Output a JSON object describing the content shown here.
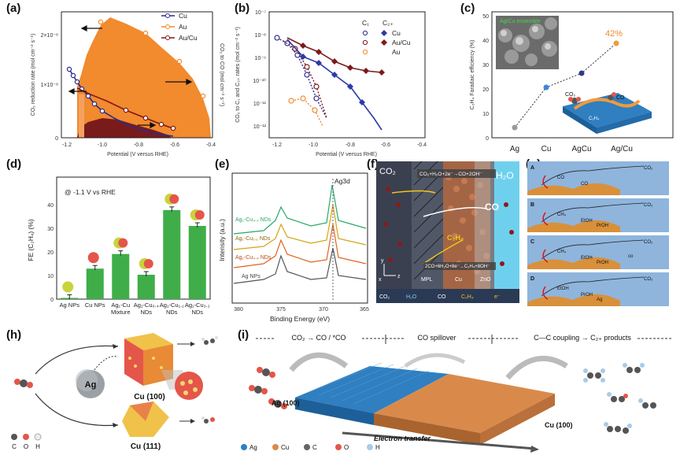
{
  "labels": {
    "a": "(a)",
    "b": "(b)",
    "c": "(c)",
    "d": "(d)",
    "e": "(e)",
    "f": "(f)",
    "g": "(g)",
    "h": "(h)",
    "i": "(i)"
  },
  "panel_a": {
    "ylabel_left": "CO₂ reduction rate (mol cm⁻² s⁻¹)",
    "ylabel_right": "CO₂ to CO (mol cm⁻² s⁻¹)",
    "xlabel": "Potential (V versus RHE)",
    "yticks": [
      "0",
      "1×10⁻⁸",
      "2×10⁻⁸"
    ],
    "xticks": [
      "-1.2",
      "-1.0",
      "-0.8",
      "-0.6",
      "-0.4"
    ],
    "legend": [
      "Cu",
      "Au",
      "Au/Cu"
    ],
    "colors": {
      "Cu": "#2b2a8f",
      "Au": "#f28a2e",
      "AuCu": "#7a1b1b"
    }
  },
  "panel_b": {
    "ylabel": "CO₂ to C₁ and C₂₊ rates (mol cm⁻² s⁻¹)",
    "xlabel": "Potential (V versus RHE)",
    "yticks": [
      "10⁻⁷",
      "10⁻⁸",
      "10⁻⁹",
      "10⁻¹⁰",
      "10⁻¹¹",
      "10⁻¹²"
    ],
    "xticks": [
      "-1.2",
      "-1.0",
      "-0.8",
      "-0.6",
      "-0.4"
    ],
    "legend_head": [
      "C₁",
      "C₂₊"
    ],
    "legend": [
      "Cu",
      "Au/Cu",
      "Au"
    ]
  },
  "panel_c": {
    "ylabel": "C₂H₄ Faradaic efficiency (%)",
    "yticks": [
      "0",
      "10",
      "20",
      "30",
      "40",
      "50"
    ],
    "categories": [
      "Ag",
      "Cu",
      "AgCu",
      "Ag/Cu"
    ],
    "values": [
      0,
      20,
      27,
      42
    ],
    "highlight": "42%",
    "inset_label": "Ag/Cu ensemble",
    "co2": "CO₂",
    "co": "CO",
    "c2h4": "C₂H₄",
    "colors": [
      "#999999",
      "#3f86d6",
      "#2e3a8c",
      "#f29a3a"
    ]
  },
  "panel_d": {
    "title": "@ -1.1 V vs RHE",
    "ylabel": "FE (C₂H₄) (%)",
    "yticks": [
      "0",
      "10",
      "20",
      "30",
      "40"
    ],
    "categories": [
      "Ag NPs",
      "Cu NPs",
      "Ag₁-Cu Mixture",
      "Ag₁-Cu₀.₄ NDs",
      "Ag₁-Cu₁.₁ NDs",
      "Ag₁-Cu₃.₂ NDs"
    ],
    "values": [
      0.5,
      12.5,
      18.5,
      10,
      36.5,
      30
    ]
  },
  "panel_e": {
    "peak": "Ag3d",
    "ylabel": "Intensity (a.u.)",
    "xlabel": "Binding Energy (eV)",
    "xticks": [
      "380",
      "375",
      "370",
      "365"
    ],
    "traces": [
      "Ag₁-Cu₃.₂ NDs",
      "Ag₁-Cu₁.₁ NDs",
      "Ag₁-Cu₀.₄ NDs",
      "Ag NPs"
    ],
    "trace_colors": [
      "#2aa86a",
      "#d4a317",
      "#e0651e",
      "#555555"
    ]
  },
  "panel_f": {
    "co2": "CO₂",
    "top_eq": "CO₂+H₂O+2e⁻→CO+2OH⁻",
    "h2o": "H₂O",
    "co": "CO",
    "c2h4": "C₂H₄",
    "bottom_eq": "2CO+6H₂O+8e⁻→C₂H₄+8OH⁻",
    "mpl": "MPL",
    "cu": "Cu",
    "zno": "ZnO",
    "axes": [
      "y",
      "x",
      "z"
    ],
    "legend": [
      "CO₂",
      "H₂O",
      "CO",
      "C₂H₄",
      "e⁻"
    ]
  },
  "panel_g": {
    "rows": [
      {
        "tag": "A",
        "items": [
          "CO₂",
          "CO",
          "CO"
        ]
      },
      {
        "tag": "B",
        "items": [
          "CO₂",
          "CH₄",
          "EtOH",
          "PrOH"
        ]
      },
      {
        "tag": "C",
        "items": [
          "CO₂",
          "CH₄",
          "EtOH",
          "PrOH",
          "co"
        ]
      },
      {
        "tag": "D",
        "items": [
          "CO₂",
          "EtOH",
          "PrOH",
          "Ag"
        ]
      }
    ]
  },
  "panel_h": {
    "ag": "Ag",
    "cu100": "Cu (100)",
    "cu111": "Cu (111)",
    "legend": [
      "C",
      "O",
      "H"
    ]
  },
  "panel_i": {
    "stage1": "CO₂ → CO / *CO",
    "stage2": "CO spillover",
    "stage3": "C—C coupling → C₂₊ products",
    "ag100": "Ag (100)",
    "cu100": "Cu (100)",
    "electron": "Electron transfer",
    "legend": [
      "Ag",
      "Cu",
      "C",
      "O",
      "H"
    ],
    "legend_colors": [
      "#2f7fc1",
      "#d98a4b",
      "#666666",
      "#e4564a",
      "#a9cbe8"
    ]
  }
}
